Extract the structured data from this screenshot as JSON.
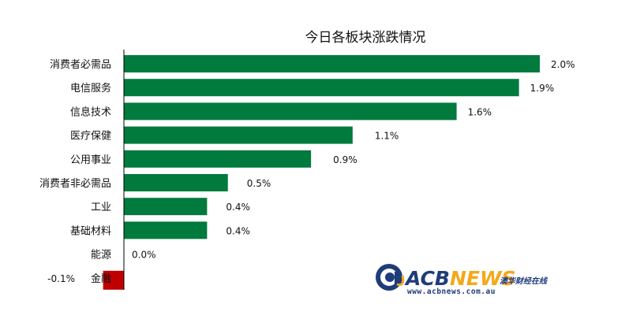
{
  "chart_data": {
    "type": "bar",
    "orientation": "horizontal",
    "title": "今日各板块涨跌情况",
    "categories": [
      "消费者必需品",
      "电信服务",
      "信息技术",
      "医疗保健",
      "公用事业",
      "消费者非必需品",
      "工业",
      "基础材料",
      "能源",
      "金融"
    ],
    "values": [
      2.0,
      1.9,
      1.6,
      1.1,
      0.9,
      0.5,
      0.4,
      0.4,
      0.0,
      -0.1
    ],
    "value_labels": [
      "2.0%",
      "1.9%",
      "1.6%",
      "1.1%",
      "0.9%",
      "0.5%",
      "0.4%",
      "0.4%",
      "0.0%",
      "-0.1%"
    ],
    "xlabel": "",
    "ylabel": "",
    "grid": false,
    "legend": "none",
    "colors": {
      "positive": "#007a3d",
      "negative": "#c00000",
      "axis": "#000000"
    }
  },
  "watermark": {
    "brand_prefix": "ACB",
    "brand_suffix": "NEWS",
    "tagline": "澳华财经在线",
    "url": "www.acbnews.com.au",
    "colors": {
      "primary": "#1f3c7a",
      "accent": "#f4a81c"
    }
  }
}
